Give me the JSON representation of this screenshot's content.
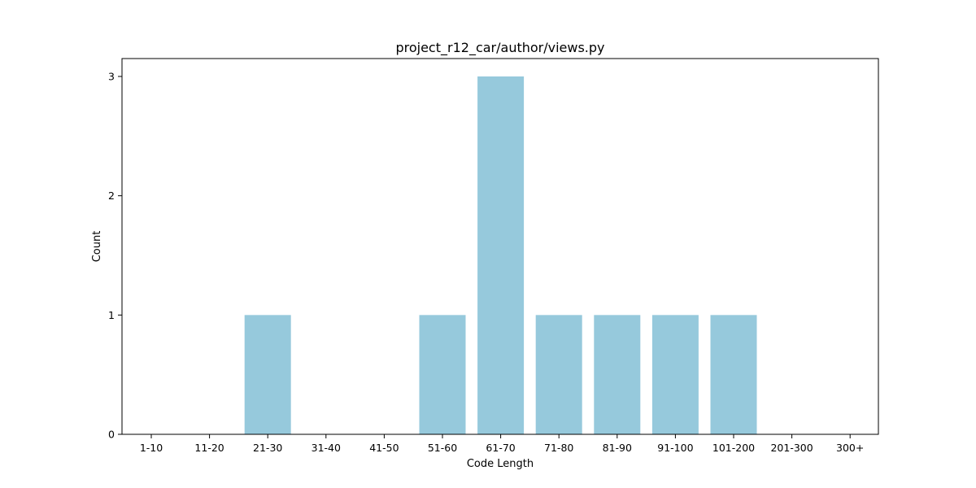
{
  "chart_data": {
    "type": "bar",
    "title": "project_r12_car/author/views.py",
    "xlabel": "Code Length",
    "ylabel": "Count",
    "categories": [
      "1-10",
      "11-20",
      "21-30",
      "31-40",
      "41-50",
      "51-60",
      "61-70",
      "71-80",
      "81-90",
      "91-100",
      "101-200",
      "201-300",
      "300+"
    ],
    "values": [
      0,
      0,
      1,
      0,
      0,
      1,
      3,
      1,
      1,
      1,
      1,
      0,
      0
    ],
    "ylim": [
      0,
      3.15
    ],
    "yticks": [
      0,
      1,
      2,
      3
    ],
    "grid": false,
    "legend": "none",
    "bar_color": "#96c9dc"
  }
}
